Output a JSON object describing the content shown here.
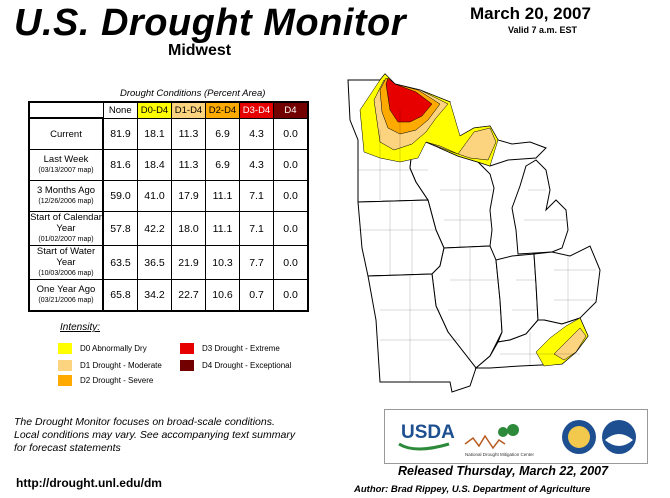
{
  "header": {
    "title": "U.S. Drought Monitor",
    "region": "Midwest",
    "date": "March 20, 2007",
    "valid": "Valid 7 a.m. EST"
  },
  "table": {
    "caption": "Drought Conditions (Percent Area)",
    "columns": [
      "None",
      "D0-D4",
      "D1-D4",
      "D2-D4",
      "D3-D4",
      "D4"
    ],
    "column_colors": [
      "#ffffff",
      "#ffff00",
      "#fcd37f",
      "#ffaa00",
      "#e60000",
      "#730000"
    ],
    "column_text_colors": [
      "#000000",
      "#000000",
      "#000000",
      "#000000",
      "#ffffff",
      "#ffffff"
    ],
    "rows": [
      {
        "label": "Current",
        "sub": "",
        "values": [
          "81.9",
          "18.1",
          "11.3",
          "6.9",
          "4.3",
          "0.0"
        ]
      },
      {
        "label": "Last Week",
        "sub": "(03/13/2007 map)",
        "values": [
          "81.6",
          "18.4",
          "11.3",
          "6.9",
          "4.3",
          "0.0"
        ]
      },
      {
        "label": "3 Months Ago",
        "sub": "(12/26/2006 map)",
        "values": [
          "59.0",
          "41.0",
          "17.9",
          "11.1",
          "7.1",
          "0.0"
        ]
      },
      {
        "label": "Start of Calendar Year",
        "sub": "(01/02/2007 map)",
        "values": [
          "57.8",
          "42.2",
          "18.0",
          "11.1",
          "7.1",
          "0.0"
        ]
      },
      {
        "label": "Start of Water Year",
        "sub": "(10/03/2006 map)",
        "values": [
          "63.5",
          "36.5",
          "21.9",
          "10.3",
          "7.7",
          "0.0"
        ]
      },
      {
        "label": "One Year Ago",
        "sub": "(03/21/2006 map)",
        "values": [
          "65.8",
          "34.2",
          "22.7",
          "10.6",
          "0.7",
          "0.0"
        ]
      }
    ]
  },
  "legend": {
    "title": "Intensity:",
    "items": [
      {
        "label": "D0 Abnormally Dry",
        "color": "#ffff00"
      },
      {
        "label": "D1 Drought - Moderate",
        "color": "#fcd37f"
      },
      {
        "label": "D2 Drought - Severe",
        "color": "#ffaa00"
      },
      {
        "label": "D3 Drought - Extreme",
        "color": "#e60000"
      },
      {
        "label": "D4 Drought - Exceptional",
        "color": "#730000"
      }
    ]
  },
  "note": {
    "line1": "The Drought Monitor focuses on broad-scale conditions.",
    "line2": "Local conditions may vary. See accompanying text summary",
    "line3": "for forecast statements"
  },
  "footer": {
    "url": "http://drought.unl.edu/dm",
    "released": "Released Thursday, March 22, 2007",
    "author": "Author: Brad Rippey, U.S. Department of Agriculture"
  },
  "logos": {
    "usda": "USDA",
    "ndmc": "National Drought Mitigation Center"
  }
}
